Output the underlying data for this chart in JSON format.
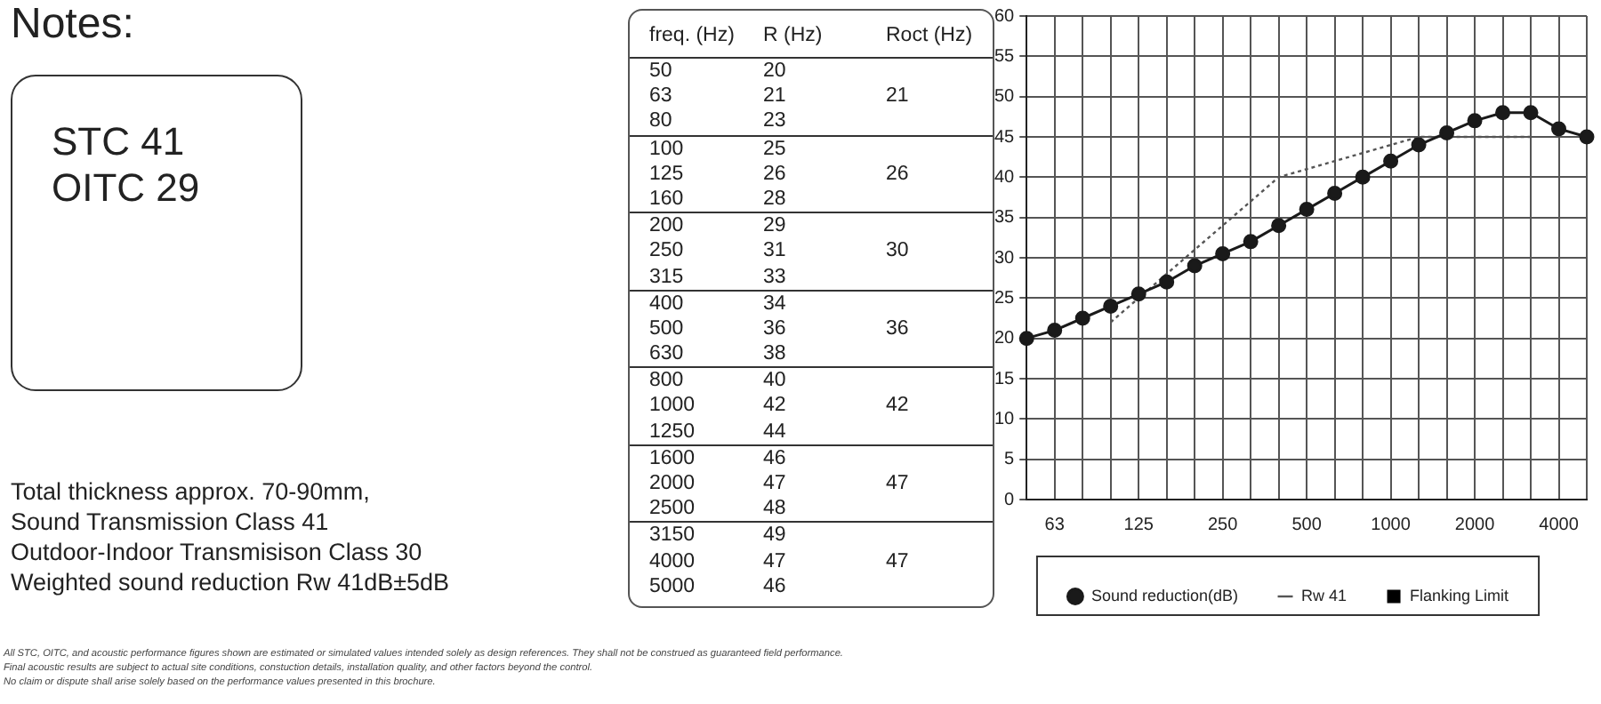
{
  "chart_data": [
    {
      "type": "other",
      "title": "Notes:",
      "annotations": [
        "STC  41",
        "OITC 29",
        "Total thickness approx. 70-90mm,",
        "Sound Transmission Class 41",
        "Outdoor-Indoor Transmisison Class 30",
        "Weighted sound reduction Rw 41dB±5dB",
        "All STC, OITC, and acoustic performance figures shown are estimated or simulated values intended solely as design references. They shall not be construed as guaranteed field performance.",
        "Final acoustic results are subject to actual site conditions, constuction details, installation quality, and other factors beyond the control.",
        "No claim or dispute shall arise solely based on the performance values presented in this brochure."
      ]
    },
    {
      "type": "other",
      "annotations": [
        "freq. (Hz)\tR (Hz)\tRoct (Hz)",
        "50\t20\t",
        "63\t21\t21",
        "80\t23\t",
        "100\t25\t",
        "125\t26\t26",
        "160\t28\t",
        "200\t29\t",
        "250\t31\t30",
        "315\t33\t",
        "400\t34\t",
        "500\t36\t36",
        "630\t38\t",
        "800\t40\t",
        "1000\t42\t42",
        "1250\t44\t",
        "1600\t46\t",
        "2000\t47\t47",
        "2500\t48\t",
        "3150\t49\t",
        "4000\t47\t47",
        "5000\t46\t"
      ]
    },
    {
      "type": "line",
      "categories": [
        null,
        "63",
        null,
        null,
        "125",
        null,
        null,
        "250",
        null,
        null,
        "500",
        null,
        null,
        "1000",
        null,
        null,
        "2000",
        null,
        null,
        "4000",
        null
      ],
      "series": [
        {
          "name": "Sound reduction(dB)",
          "color": "#1a1a1a",
          "marker": "circle",
          "line_style": "solid",
          "values": [
            20,
            21,
            22.5,
            24,
            25.5,
            27,
            29,
            30.5,
            32,
            34,
            36,
            38,
            40,
            42,
            44,
            45.5,
            47,
            48,
            48,
            46,
            45
          ]
        },
        {
          "name": "Rw 41",
          "color": "#555555",
          "marker": "none",
          "line_style": "dotted",
          "values": [
            null,
            null,
            null,
            22,
            25,
            28,
            31,
            34,
            37,
            40,
            41,
            42,
            43,
            44,
            45,
            45,
            45,
            45,
            45,
            null,
            null
          ]
        },
        {
          "name": "Flanking Limit",
          "color": "#000000",
          "marker": "square",
          "line_style": "solid",
          "values": [
            null,
            null,
            null,
            null,
            null,
            null,
            null,
            null,
            null,
            null,
            null,
            null,
            null,
            null,
            null,
            null,
            null,
            null,
            null,
            null,
            null
          ]
        }
      ],
      "ylim": [
        0,
        60
      ],
      "yticks": [
        0,
        5,
        10,
        15,
        20,
        25,
        30,
        35,
        40,
        45,
        50,
        55,
        60
      ],
      "grid": true,
      "legend": "bottom"
    }
  ]
}
